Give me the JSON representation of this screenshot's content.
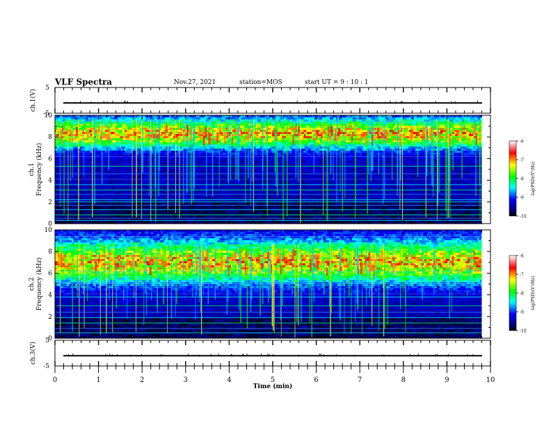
{
  "header": {
    "title": "VLF Spectra",
    "date": "Nov.27, 2021",
    "station": "station=MOS",
    "start": "start  UT  =   9  : 10 : 1"
  },
  "colors": {
    "colormap": [
      "#ffffff",
      "#ff0000",
      "#ffff00",
      "#00ff00",
      "#00ffff",
      "#0000ff",
      "#000080",
      "#000000"
    ],
    "background": "#000000"
  },
  "chart_data": [
    {
      "type": "line",
      "name": "ch1-waveform",
      "ylabel": "ch.1(V)",
      "ylim": [
        -5,
        5
      ],
      "yticks": [
        "5",
        "-5"
      ],
      "xlim": [
        0,
        10
      ],
      "x": [
        0,
        10
      ],
      "y": [
        -1,
        -1
      ]
    },
    {
      "type": "heatmap",
      "name": "ch1-spectrogram",
      "ylabel": "ch.1\nFrequency (kHz)",
      "ylabel_line1": "ch.1",
      "ylabel_line2": "Frequency (kHz)",
      "ylim": [
        0,
        10
      ],
      "yticks": [
        "0",
        "2",
        "4",
        "6",
        "8",
        "10"
      ],
      "xlim": [
        0,
        10
      ],
      "data_extent_min": 9.8,
      "band_center_khz": 8.3,
      "band_halfwidth_khz": 0.9,
      "hum_lines_khz": [
        0.3,
        0.5,
        0.8,
        1.3,
        1.7,
        2.0,
        2.2,
        2.7,
        3.1,
        3.6,
        4.6,
        5.3
      ],
      "colorbar": {
        "label": "log(PSD)(V²/Hz)",
        "ticks": [
          "-6",
          "-7",
          "-8",
          "-9",
          "-10"
        ],
        "range": [
          -10,
          -6
        ]
      }
    },
    {
      "type": "heatmap",
      "name": "ch2-spectrogram",
      "ylabel": "ch.2\nFrequency (kHz)",
      "ylabel_line1": "ch.2",
      "ylabel_line2": "Frequency (kHz)",
      "ylim": [
        0,
        10
      ],
      "yticks": [
        "0",
        "2",
        "4",
        "6",
        "8",
        "10"
      ],
      "xlim": [
        0,
        10
      ],
      "data_extent_min": 9.8,
      "band_center_khz": 7.0,
      "band_halfwidth_khz": 1.3,
      "hum_lines_khz": [
        0.5,
        0.9,
        1.4,
        1.9,
        2.4,
        3.0,
        3.8,
        5.1
      ],
      "colorbar": {
        "label": "log(PSD)(V²/Hz)",
        "ticks": [
          "-6",
          "-7",
          "-8",
          "-9",
          "-10"
        ],
        "range": [
          -10,
          -6
        ]
      }
    },
    {
      "type": "line",
      "name": "ch3-waveform",
      "ylabel": "ch.3(V)",
      "ylim": [
        -5,
        5
      ],
      "yticks": [
        "5",
        "-5"
      ],
      "xlim": [
        0,
        10
      ],
      "xticks": [
        "0",
        "1",
        "2",
        "3",
        "4",
        "5",
        "6",
        "7",
        "8",
        "9",
        "10"
      ],
      "xlabel": "Time  (min)",
      "x": [
        0,
        10
      ],
      "y": [
        -1,
        -1
      ]
    }
  ]
}
